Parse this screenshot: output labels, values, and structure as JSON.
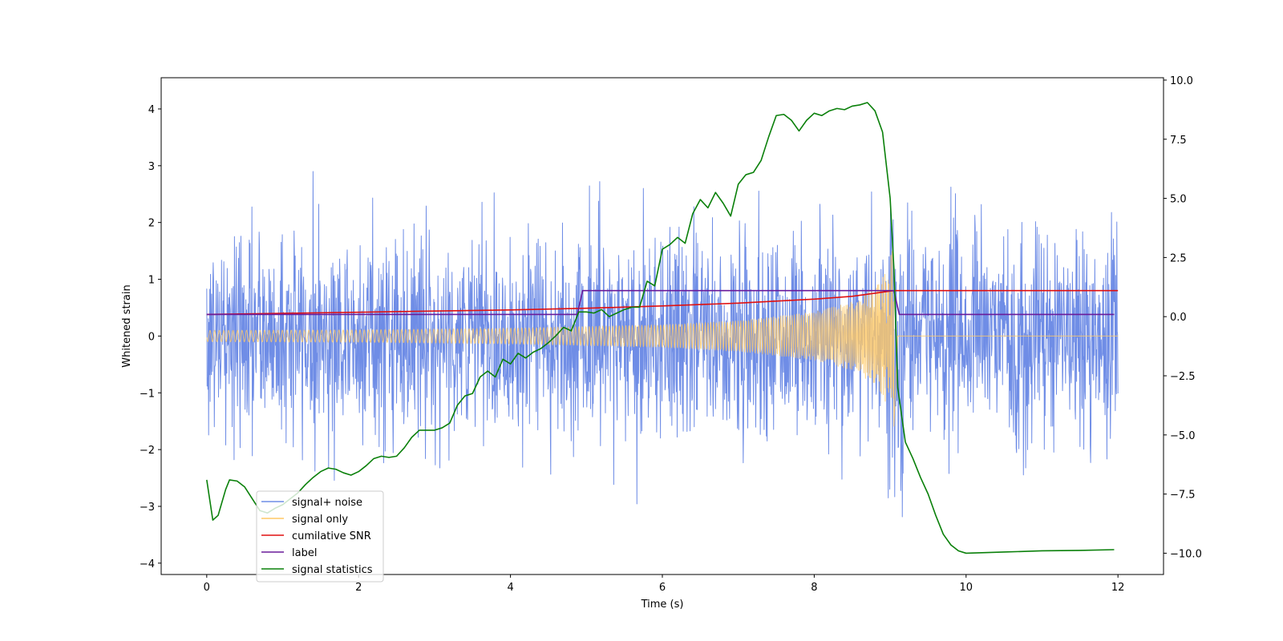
{
  "chart_data": {
    "type": "line",
    "title": "",
    "xlabel": "Time (s)",
    "ylabel": "Whitened strain",
    "y2label": "",
    "xlim": [
      -0.6,
      12.6
    ],
    "ylim": [
      -4.2,
      4.55
    ],
    "y2lim": [
      -10.9,
      10.1
    ],
    "x_ticks": [
      0,
      2,
      4,
      6,
      8,
      10,
      12
    ],
    "x_tick_labels": [
      "0",
      "2",
      "4",
      "6",
      "8",
      "10",
      "12"
    ],
    "y_ticks": [
      -4,
      -3,
      -2,
      -1,
      0,
      1,
      2,
      3,
      4
    ],
    "y_tick_labels": [
      "−4",
      "−3",
      "−2",
      "−1",
      "0",
      "1",
      "2",
      "3",
      "4"
    ],
    "y2_ticks": [
      -10,
      -7.5,
      -5,
      -2.5,
      0,
      2.5,
      5,
      7.5,
      10
    ],
    "y2_tick_labels": [
      "−10.0",
      "−7.5",
      "−5.0",
      "−2.5",
      "0.0",
      "2.5",
      "5.0",
      "7.5",
      "10.0"
    ],
    "legend_position": "lower-left",
    "series": [
      {
        "name": "signal+ noise",
        "axis": "left",
        "color": "#6f8de6",
        "kind": "noise",
        "x_range": [
          0,
          12
        ],
        "sigma": 0.9,
        "coalescence_time": 9.05
      },
      {
        "name": "signal only",
        "axis": "left",
        "color": "#ffc966",
        "kind": "chirp",
        "x_range": [
          0,
          12
        ],
        "coalescence_time": 9.05,
        "amplitude_envelope": [
          [
            0,
            0.1
          ],
          [
            2,
            0.11
          ],
          [
            4,
            0.14
          ],
          [
            6,
            0.2
          ],
          [
            7,
            0.27
          ],
          [
            8,
            0.42
          ],
          [
            8.5,
            0.6
          ],
          [
            8.8,
            0.85
          ],
          [
            8.95,
            1.2
          ],
          [
            9.05,
            1.6
          ],
          [
            9.1,
            0.0
          ],
          [
            12,
            0.0
          ]
        ]
      },
      {
        "name": "cumilative SNR",
        "axis": "left",
        "color": "#e01010",
        "points": [
          [
            0,
            0.38
          ],
          [
            1,
            0.4
          ],
          [
            2,
            0.42
          ],
          [
            3,
            0.44
          ],
          [
            4,
            0.46
          ],
          [
            5,
            0.49
          ],
          [
            6,
            0.53
          ],
          [
            7,
            0.58
          ],
          [
            8,
            0.65
          ],
          [
            8.5,
            0.7
          ],
          [
            9.05,
            0.8
          ],
          [
            12,
            0.8
          ]
        ]
      },
      {
        "name": "label",
        "axis": "left",
        "color": "#6a1b9a",
        "points": [
          [
            0,
            0.38
          ],
          [
            4.88,
            0.38
          ],
          [
            4.95,
            0.8
          ],
          [
            9.05,
            0.8
          ],
          [
            9.12,
            0.38
          ],
          [
            11.95,
            0.38
          ]
        ]
      },
      {
        "name": "signal statistics",
        "axis": "right",
        "color": "#0a800a",
        "points": [
          [
            0.0,
            -6.9
          ],
          [
            0.08,
            -8.6
          ],
          [
            0.15,
            -8.4
          ],
          [
            0.25,
            -7.3
          ],
          [
            0.3,
            -6.9
          ],
          [
            0.4,
            -6.95
          ],
          [
            0.5,
            -7.2
          ],
          [
            0.6,
            -7.7
          ],
          [
            0.7,
            -8.2
          ],
          [
            0.8,
            -8.3
          ],
          [
            0.9,
            -8.1
          ],
          [
            1.0,
            -7.95
          ],
          [
            1.1,
            -7.7
          ],
          [
            1.2,
            -7.45
          ],
          [
            1.3,
            -7.1
          ],
          [
            1.4,
            -6.8
          ],
          [
            1.5,
            -6.55
          ],
          [
            1.6,
            -6.4
          ],
          [
            1.7,
            -6.45
          ],
          [
            1.8,
            -6.6
          ],
          [
            1.9,
            -6.7
          ],
          [
            2.0,
            -6.55
          ],
          [
            2.1,
            -6.3
          ],
          [
            2.2,
            -6.0
          ],
          [
            2.3,
            -5.9
          ],
          [
            2.4,
            -5.95
          ],
          [
            2.5,
            -5.9
          ],
          [
            2.6,
            -5.55
          ],
          [
            2.7,
            -5.1
          ],
          [
            2.8,
            -4.8
          ],
          [
            2.9,
            -4.8
          ],
          [
            3.0,
            -4.8
          ],
          [
            3.1,
            -4.7
          ],
          [
            3.2,
            -4.5
          ],
          [
            3.3,
            -3.75
          ],
          [
            3.4,
            -3.35
          ],
          [
            3.5,
            -3.25
          ],
          [
            3.6,
            -2.55
          ],
          [
            3.7,
            -2.3
          ],
          [
            3.8,
            -2.55
          ],
          [
            3.9,
            -1.8
          ],
          [
            4.0,
            -2.0
          ],
          [
            4.1,
            -1.55
          ],
          [
            4.2,
            -1.75
          ],
          [
            4.3,
            -1.5
          ],
          [
            4.4,
            -1.35
          ],
          [
            4.5,
            -1.1
          ],
          [
            4.6,
            -0.8
          ],
          [
            4.7,
            -0.45
          ],
          [
            4.8,
            -0.6
          ],
          [
            4.9,
            0.2
          ],
          [
            5.0,
            0.2
          ],
          [
            5.1,
            0.15
          ],
          [
            5.2,
            0.3
          ],
          [
            5.3,
            0.0
          ],
          [
            5.4,
            0.15
          ],
          [
            5.5,
            0.3
          ],
          [
            5.6,
            0.4
          ],
          [
            5.7,
            0.4
          ],
          [
            5.8,
            1.5
          ],
          [
            5.9,
            1.3
          ],
          [
            6.0,
            2.85
          ],
          [
            6.1,
            3.05
          ],
          [
            6.2,
            3.35
          ],
          [
            6.3,
            3.1
          ],
          [
            6.4,
            4.35
          ],
          [
            6.5,
            4.95
          ],
          [
            6.6,
            4.6
          ],
          [
            6.7,
            5.25
          ],
          [
            6.8,
            4.8
          ],
          [
            6.9,
            4.25
          ],
          [
            7.0,
            5.6
          ],
          [
            7.1,
            6.0
          ],
          [
            7.2,
            6.1
          ],
          [
            7.3,
            6.6
          ],
          [
            7.4,
            7.6
          ],
          [
            7.5,
            8.5
          ],
          [
            7.6,
            8.55
          ],
          [
            7.7,
            8.3
          ],
          [
            7.8,
            7.85
          ],
          [
            7.9,
            8.3
          ],
          [
            8.0,
            8.6
          ],
          [
            8.1,
            8.5
          ],
          [
            8.2,
            8.7
          ],
          [
            8.3,
            8.8
          ],
          [
            8.4,
            8.75
          ],
          [
            8.5,
            8.9
          ],
          [
            8.6,
            8.95
          ],
          [
            8.7,
            9.05
          ],
          [
            8.8,
            8.7
          ],
          [
            8.9,
            7.8
          ],
          [
            9.0,
            5.0
          ],
          [
            9.05,
            2.0
          ],
          [
            9.1,
            -3.0
          ],
          [
            9.2,
            -5.3
          ],
          [
            9.3,
            -6.0
          ],
          [
            9.4,
            -6.8
          ],
          [
            9.5,
            -7.5
          ],
          [
            9.6,
            -8.4
          ],
          [
            9.7,
            -9.2
          ],
          [
            9.8,
            -9.65
          ],
          [
            9.9,
            -9.9
          ],
          [
            10.0,
            -10.0
          ],
          [
            10.5,
            -9.95
          ],
          [
            11.0,
            -9.9
          ],
          [
            11.5,
            -9.88
          ],
          [
            11.95,
            -9.85
          ]
        ]
      }
    ]
  }
}
